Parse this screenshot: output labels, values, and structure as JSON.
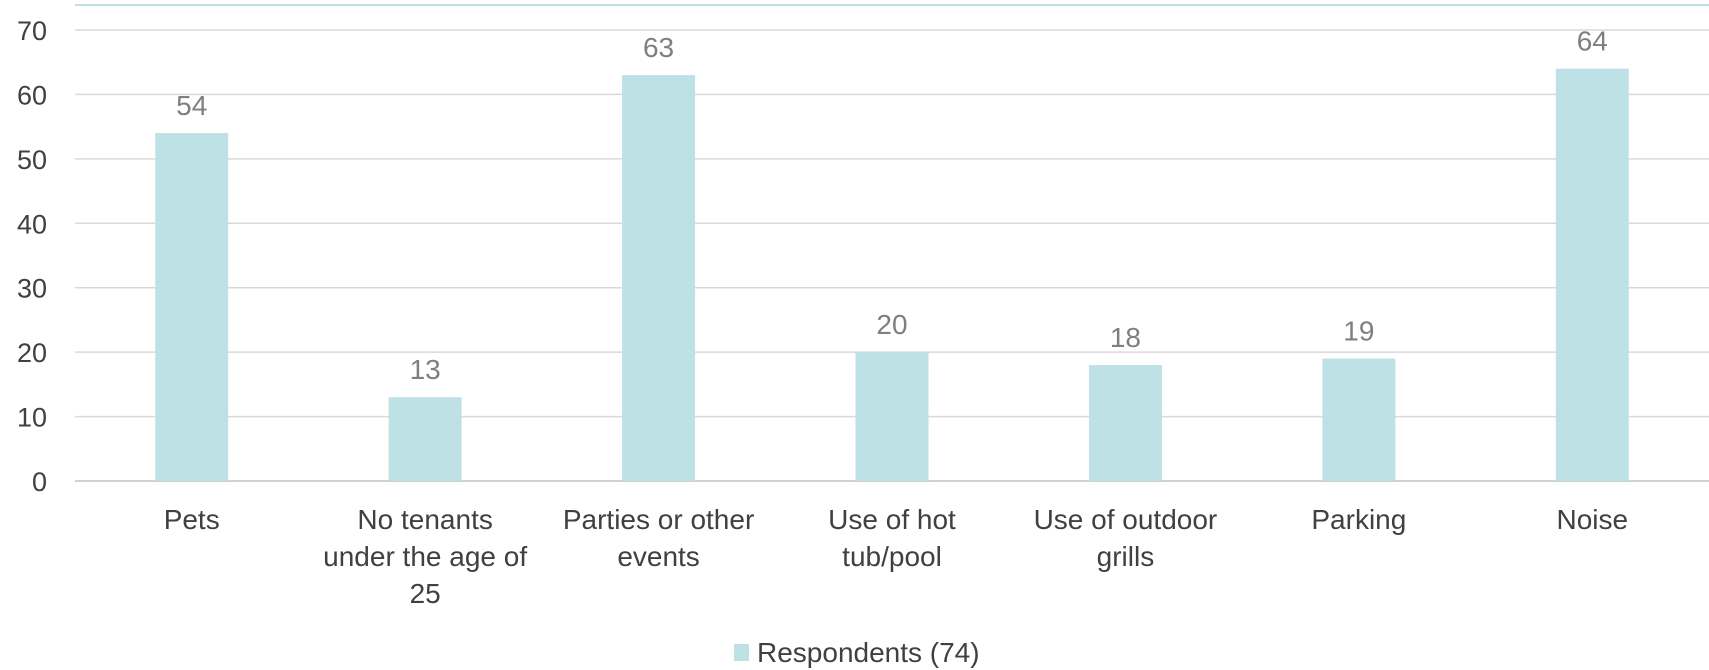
{
  "chart_data": {
    "type": "bar",
    "title": "",
    "xlabel": "",
    "ylabel": "",
    "categories": [
      [
        "Pets"
      ],
      [
        "No tenants",
        "under the age of",
        "25"
      ],
      [
        "Parties or other",
        "events"
      ],
      [
        "Use of hot",
        "tub/pool"
      ],
      [
        "Use of outdoor",
        "grills"
      ],
      [
        "Parking"
      ],
      [
        "Noise"
      ]
    ],
    "series": [
      {
        "name": "Respondents (74)",
        "values": [
          54,
          13,
          63,
          20,
          18,
          19,
          64
        ],
        "color": "#bde1e5"
      }
    ],
    "ylim": [
      0,
      70
    ],
    "yticks": [
      0,
      10,
      20,
      30,
      40,
      50,
      60,
      70
    ],
    "grid": true,
    "legend_position": "bottom",
    "data_labels": true
  }
}
